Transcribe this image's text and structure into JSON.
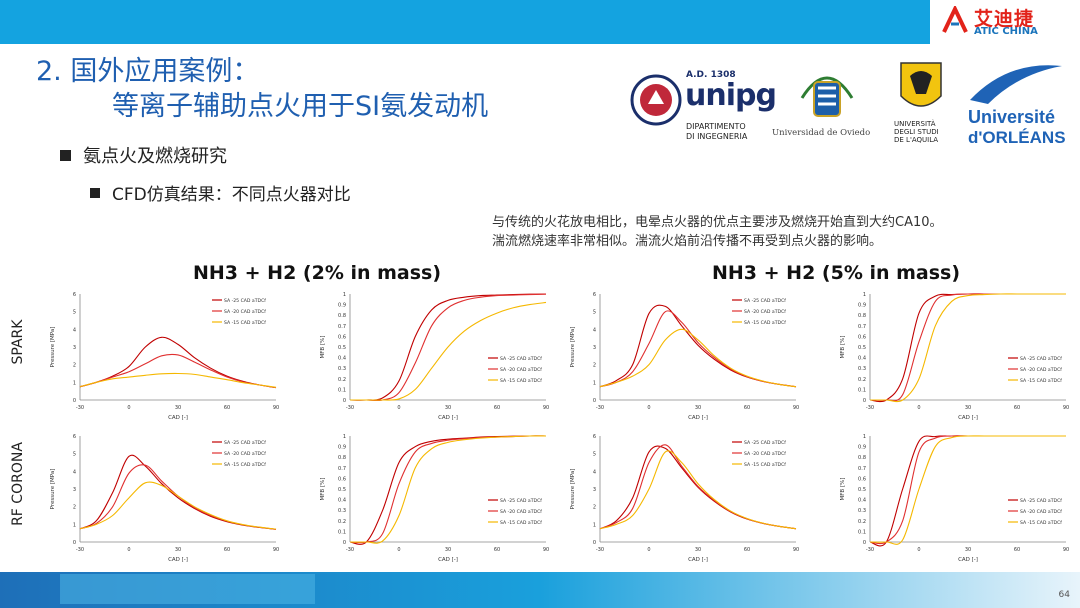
{
  "brand": {
    "name_cn": "艾迪捷",
    "name_en": "ATIC CHINA"
  },
  "title": {
    "line1": "2. 国外应用案例：",
    "line2": "等离子辅助点火用于SI氨发动机"
  },
  "logos": {
    "unipg": {
      "year": "A.D. 1308",
      "name": "unipg",
      "dept1": "DIPARTIMENTO",
      "dept2": "DI INGEGNERIA"
    },
    "oviedo": {
      "name": "Universidad de Oviedo"
    },
    "aquila": {
      "line1": "UNIVERSITÀ",
      "line2": "DEGLI STUDI",
      "line3": "DE L'AQUILA"
    },
    "orleans": {
      "line1": "Université",
      "line2": "d'ORLÉANS"
    }
  },
  "bullets": {
    "level1": "氨点火及燃烧研究",
    "level2": "CFD仿真结果：不同点火器对比"
  },
  "note": {
    "line1": "与传统的火花放电相比，电晕点火器的优点主要涉及燃烧开始直到大约CA10。",
    "line2": "湍流燃烧速率非常相似。湍流火焰前沿传播不再受到点火器的影响。"
  },
  "headers": {
    "h2": "NH3 + H2 (2% in mass)",
    "h5": "NH3 + H2 (5% in mass)"
  },
  "row_labels": {
    "spark": "SPARK",
    "corona": "RF CORONA"
  },
  "page_number": "64",
  "colors": {
    "topbar": "#14a3e0",
    "title": "#1f5fb0",
    "s25": "#c00000",
    "s20": "#e03030",
    "s15": "#f5b800"
  },
  "chart_data": [
    {
      "id": "p_spark_2",
      "type": "line",
      "xlabel": "CAD [-]",
      "ylabel": "Pressure [MPa]",
      "xlim": [
        -30,
        90
      ],
      "ylim": [
        0,
        6
      ],
      "xticks": [
        "-30",
        "0",
        "30",
        "60",
        "90"
      ],
      "yticks": [
        "0",
        "1",
        "2",
        "3",
        "4",
        "5",
        "6"
      ],
      "x": [
        -30,
        -20,
        -10,
        0,
        10,
        20,
        30,
        40,
        50,
        60,
        70,
        80,
        90
      ],
      "series": [
        {
          "name": "SA -25 CAD aTDCf",
          "values": [
            0.75,
            1.0,
            1.35,
            1.9,
            3.0,
            3.55,
            3.15,
            2.4,
            1.8,
            1.35,
            1.05,
            0.85,
            0.7
          ]
        },
        {
          "name": "SA -20 CAD aTDCf",
          "values": [
            0.75,
            1.0,
            1.3,
            1.6,
            2.05,
            2.5,
            2.55,
            2.15,
            1.7,
            1.3,
            1.02,
            0.85,
            0.7
          ]
        },
        {
          "name": "SA -15 CAD aTDCf",
          "values": [
            0.75,
            1.0,
            1.2,
            1.3,
            1.4,
            1.48,
            1.5,
            1.45,
            1.3,
            1.15,
            0.98,
            0.85,
            0.72
          ]
        }
      ]
    },
    {
      "id": "m_spark_2",
      "type": "line",
      "xlabel": "CAD [-]",
      "ylabel": "MFB [%]",
      "xlim": [
        -30,
        90
      ],
      "ylim": [
        0,
        1
      ],
      "xticks": [
        "-30",
        "0",
        "30",
        "60",
        "90"
      ],
      "yticks": [
        "0",
        "0.1",
        "0.2",
        "0.3",
        "0.4",
        "0.5",
        "0.6",
        "0.7",
        "0.8",
        "0.9",
        "1"
      ],
      "x": [
        -30,
        -20,
        -10,
        0,
        10,
        20,
        30,
        40,
        50,
        60,
        70,
        80,
        90
      ],
      "series": [
        {
          "name": "SA -25 CAD aTDCf",
          "values": [
            0,
            0,
            0.02,
            0.18,
            0.6,
            0.85,
            0.94,
            0.97,
            0.985,
            0.99,
            0.995,
            0.998,
            1.0
          ]
        },
        {
          "name": "SA -20 CAD aTDCf",
          "values": [
            0,
            0,
            0,
            0.07,
            0.35,
            0.7,
            0.87,
            0.94,
            0.97,
            0.985,
            0.99,
            0.995,
            0.998
          ]
        },
        {
          "name": "SA -15 CAD aTDCf",
          "values": [
            0,
            0,
            0,
            0.01,
            0.1,
            0.3,
            0.5,
            0.65,
            0.75,
            0.82,
            0.87,
            0.9,
            0.92
          ]
        }
      ]
    },
    {
      "id": "p_spark_5",
      "type": "line",
      "xlabel": "CAD [-]",
      "ylabel": "Pressure [MPa]",
      "xlim": [
        -30,
        90
      ],
      "ylim": [
        0,
        6
      ],
      "xticks": [
        "-30",
        "0",
        "30",
        "60",
        "90"
      ],
      "yticks": [
        "0",
        "1",
        "2",
        "3",
        "4",
        "5",
        "6"
      ],
      "x": [
        -30,
        -20,
        -10,
        0,
        10,
        20,
        30,
        40,
        50,
        60,
        70,
        80,
        90
      ],
      "series": [
        {
          "name": "SA -25 CAD aTDCf",
          "values": [
            0.75,
            1.1,
            2.0,
            4.9,
            5.3,
            4.2,
            3.1,
            2.3,
            1.7,
            1.3,
            1.05,
            0.88,
            0.75
          ]
        },
        {
          "name": "SA -20 CAD aTDCf",
          "values": [
            0.75,
            1.0,
            1.6,
            3.2,
            5.0,
            4.4,
            3.25,
            2.4,
            1.75,
            1.32,
            1.05,
            0.88,
            0.75
          ]
        },
        {
          "name": "SA -15 CAD aTDCf",
          "values": [
            0.75,
            1.0,
            1.35,
            2.0,
            3.4,
            4.0,
            3.4,
            2.5,
            1.8,
            1.35,
            1.07,
            0.88,
            0.75
          ]
        }
      ]
    },
    {
      "id": "m_spark_5",
      "type": "line",
      "xlabel": "CAD [-]",
      "ylabel": "MFB [%]",
      "xlim": [
        -30,
        90
      ],
      "ylim": [
        0,
        1
      ],
      "xticks": [
        "-30",
        "0",
        "30",
        "60",
        "90"
      ],
      "yticks": [
        "0",
        "0.1",
        "0.2",
        "0.3",
        "0.4",
        "0.5",
        "0.6",
        "0.7",
        "0.8",
        "0.9",
        "1"
      ],
      "x": [
        -30,
        -20,
        -10,
        0,
        10,
        20,
        30,
        40,
        50,
        60,
        70,
        80,
        90
      ],
      "series": [
        {
          "name": "SA -25 CAD aTDCf",
          "values": [
            0,
            0,
            0.2,
            0.82,
            0.98,
            0.995,
            1,
            1,
            1,
            1,
            1,
            1,
            1
          ]
        },
        {
          "name": "SA -20 CAD aTDCf",
          "values": [
            0,
            0,
            0.05,
            0.55,
            0.93,
            0.99,
            1,
            1,
            1,
            1,
            1,
            1,
            1
          ]
        },
        {
          "name": "SA -15 CAD aTDCf",
          "values": [
            0,
            0,
            0,
            0.2,
            0.7,
            0.93,
            0.985,
            0.995,
            1,
            1,
            1,
            1,
            1
          ]
        }
      ]
    },
    {
      "id": "p_corona_2",
      "type": "line",
      "xlabel": "CAD [-]",
      "ylabel": "Pressure [MPa]",
      "xlim": [
        -30,
        90
      ],
      "ylim": [
        0,
        6
      ],
      "xticks": [
        "-30",
        "0",
        "30",
        "60",
        "90"
      ],
      "yticks": [
        "0",
        "1",
        "2",
        "3",
        "4",
        "5",
        "6"
      ],
      "x": [
        -30,
        -20,
        -10,
        0,
        10,
        20,
        30,
        40,
        50,
        60,
        70,
        80,
        90
      ],
      "series": [
        {
          "name": "SA -25 CAD aTDCf",
          "values": [
            0.75,
            1.2,
            2.8,
            4.85,
            4.3,
            3.3,
            2.5,
            1.9,
            1.45,
            1.15,
            0.95,
            0.82,
            0.72
          ]
        },
        {
          "name": "SA -20 CAD aTDCf",
          "values": [
            0.75,
            1.05,
            2.0,
            3.9,
            4.35,
            3.45,
            2.6,
            1.95,
            1.5,
            1.18,
            0.97,
            0.83,
            0.72
          ]
        },
        {
          "name": "SA -15 CAD aTDCf",
          "values": [
            0.75,
            1.0,
            1.5,
            2.5,
            3.35,
            3.2,
            2.6,
            2.0,
            1.55,
            1.2,
            0.98,
            0.84,
            0.73
          ]
        }
      ]
    },
    {
      "id": "m_corona_2",
      "type": "line",
      "xlabel": "CAD [-]",
      "ylabel": "MFB [%]",
      "xlim": [
        -30,
        90
      ],
      "ylim": [
        0,
        1
      ],
      "xticks": [
        "-30",
        "0",
        "30",
        "60",
        "90"
      ],
      "yticks": [
        "0",
        "0.1",
        "0.2",
        "0.3",
        "0.4",
        "0.5",
        "0.6",
        "0.7",
        "0.8",
        "0.9",
        "1"
      ],
      "x": [
        -30,
        -20,
        -10,
        0,
        10,
        20,
        30,
        40,
        50,
        60,
        70,
        80,
        90
      ],
      "series": [
        {
          "name": "SA -25 CAD aTDCf",
          "values": [
            0,
            0,
            0.3,
            0.75,
            0.9,
            0.95,
            0.97,
            0.98,
            0.99,
            0.995,
            0.998,
            1,
            1
          ]
        },
        {
          "name": "SA -20 CAD aTDCf",
          "values": [
            0,
            0,
            0.08,
            0.55,
            0.85,
            0.93,
            0.96,
            0.975,
            0.985,
            0.99,
            0.995,
            1,
            1
          ]
        },
        {
          "name": "SA -15 CAD aTDCf",
          "values": [
            0,
            0,
            0.01,
            0.25,
            0.7,
            0.88,
            0.94,
            0.965,
            0.98,
            0.99,
            0.995,
            1,
            1
          ]
        }
      ]
    },
    {
      "id": "p_corona_5",
      "type": "line",
      "xlabel": "CAD [-]",
      "ylabel": "Pressure [MPa]",
      "xlim": [
        -30,
        90
      ],
      "ylim": [
        0,
        6
      ],
      "xticks": [
        "-30",
        "0",
        "30",
        "60",
        "90"
      ],
      "yticks": [
        "0",
        "1",
        "2",
        "3",
        "4",
        "5",
        "6"
      ],
      "x": [
        -30,
        -20,
        -10,
        0,
        10,
        20,
        30,
        40,
        50,
        60,
        70,
        80,
        90
      ],
      "series": [
        {
          "name": "SA -25 CAD aTDCf",
          "values": [
            0.75,
            1.2,
            2.5,
            5.1,
            5.3,
            4.2,
            3.1,
            2.3,
            1.7,
            1.3,
            1.05,
            0.88,
            0.75
          ]
        },
        {
          "name": "SA -20 CAD aTDCf",
          "values": [
            0.75,
            1.1,
            1.9,
            4.5,
            5.5,
            4.3,
            3.15,
            2.35,
            1.72,
            1.32,
            1.05,
            0.88,
            0.75
          ]
        },
        {
          "name": "SA -15 CAD aTDCf",
          "values": [
            0.75,
            1.0,
            1.5,
            3.0,
            5.1,
            4.5,
            3.3,
            2.4,
            1.75,
            1.33,
            1.06,
            0.88,
            0.75
          ]
        }
      ]
    },
    {
      "id": "m_corona_5",
      "type": "line",
      "xlabel": "CAD [-]",
      "ylabel": "MFB [%]",
      "xlim": [
        -30,
        90
      ],
      "ylim": [
        0,
        1
      ],
      "xticks": [
        "-30",
        "0",
        "30",
        "60",
        "90"
      ],
      "yticks": [
        "0",
        "0.1",
        "0.2",
        "0.3",
        "0.4",
        "0.5",
        "0.6",
        "0.7",
        "0.8",
        "0.9",
        "1"
      ],
      "x": [
        -30,
        -20,
        -10,
        0,
        10,
        20,
        30,
        40,
        50,
        60,
        70,
        80,
        90
      ],
      "series": [
        {
          "name": "SA -25 CAD aTDCf",
          "values": [
            0,
            0,
            0.5,
            0.95,
            0.995,
            1,
            1,
            1,
            1,
            1,
            1,
            1,
            1
          ]
        },
        {
          "name": "SA -20 CAD aTDCf",
          "values": [
            0,
            0,
            0.2,
            0.85,
            0.98,
            1,
            1,
            1,
            1,
            1,
            1,
            1,
            1
          ]
        },
        {
          "name": "SA -15 CAD aTDCf",
          "values": [
            0,
            0,
            0.02,
            0.5,
            0.9,
            0.985,
            1,
            1,
            1,
            1,
            1,
            1,
            1
          ]
        }
      ]
    }
  ]
}
